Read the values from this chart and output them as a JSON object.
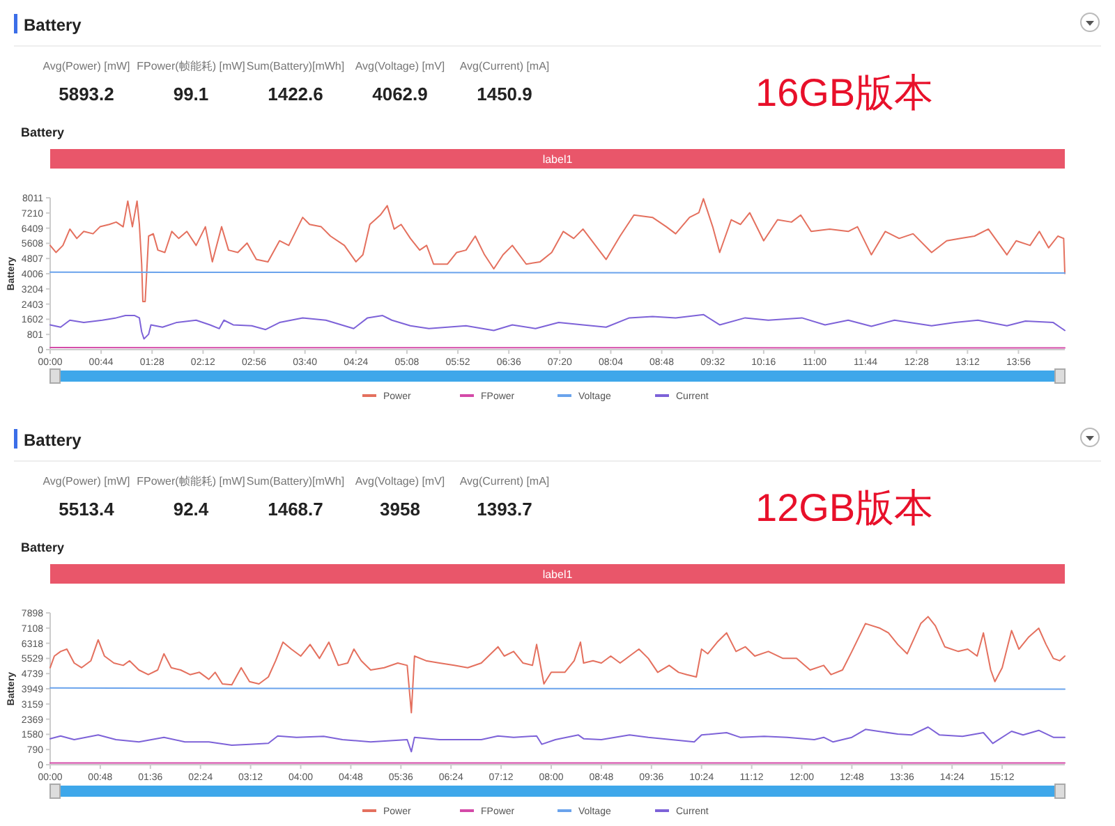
{
  "chart_data": [
    {
      "type": "line",
      "title": "Battery",
      "subtitle": "Battery",
      "ylabel": "Battery",
      "legend": "bottom",
      "annotations": [
        "Avg(Power) [mW]",
        "5893.2",
        "FPower(帧能耗) [mW]",
        "99.1",
        "Sum(Battery)[mWh]",
        "1422.6",
        "Avg(Voltage) [mV]",
        "4062.9",
        "Avg(Current) [mA]",
        "1450.9",
        "label1",
        "16GB版本"
      ],
      "xlim": [
        0,
        876
      ],
      "ylim": [
        0,
        8011
      ],
      "xticks": [
        {
          "value": 0,
          "label": "00:00"
        },
        {
          "value": 44,
          "label": "00:44"
        },
        {
          "value": 88,
          "label": "01:28"
        },
        {
          "value": 132,
          "label": "02:12"
        },
        {
          "value": 176,
          "label": "02:56"
        },
        {
          "value": 220,
          "label": "03:40"
        },
        {
          "value": 264,
          "label": "04:24"
        },
        {
          "value": 308,
          "label": "05:08"
        },
        {
          "value": 352,
          "label": "05:52"
        },
        {
          "value": 396,
          "label": "06:36"
        },
        {
          "value": 440,
          "label": "07:20"
        },
        {
          "value": 484,
          "label": "08:04"
        },
        {
          "value": 528,
          "label": "08:48"
        },
        {
          "value": 572,
          "label": "09:32"
        },
        {
          "value": 616,
          "label": "10:16"
        },
        {
          "value": 660,
          "label": "11:00"
        },
        {
          "value": 704,
          "label": "11:44"
        },
        {
          "value": 748,
          "label": "12:28"
        },
        {
          "value": 792,
          "label": "13:12"
        },
        {
          "value": 836,
          "label": "13:56"
        }
      ],
      "yticks": [
        0,
        801,
        1602,
        2403,
        3204,
        4006,
        4807,
        5608,
        6409,
        7210,
        8011
      ],
      "series": [
        {
          "name": "Power",
          "color": "#e4705e",
          "x": [
            0,
            5,
            11,
            17,
            23,
            29,
            37,
            43,
            51,
            57,
            63,
            67,
            71,
            75,
            77,
            79,
            80,
            82,
            85,
            89,
            93,
            99,
            105,
            111,
            118,
            126,
            134,
            140,
            148,
            154,
            162,
            170,
            178,
            188,
            198,
            206,
            218,
            224,
            234,
            242,
            254,
            264,
            270,
            276,
            285,
            291,
            297,
            303,
            311,
            319,
            325,
            331,
            343,
            351,
            359,
            367,
            375,
            383,
            391,
            399,
            411,
            423,
            433,
            443,
            452,
            460,
            480,
            492,
            504,
            520,
            532,
            540,
            552,
            560,
            564,
            572,
            578,
            588,
            596,
            604,
            616,
            628,
            640,
            648,
            657,
            673,
            689,
            697,
            709,
            721,
            733,
            745,
            761,
            774,
            786,
            798,
            810,
            826,
            834,
            846,
            854,
            862,
            870,
            875,
            876
          ],
          "values": [
            5497,
            5127,
            5497,
            6360,
            5867,
            6236,
            6113,
            6483,
            6606,
            6729,
            6483,
            7839,
            6483,
            7839,
            6606,
            4511,
            2539,
            2539,
            5990,
            6113,
            5250,
            5127,
            6236,
            5867,
            6236,
            5497,
            6483,
            4634,
            6483,
            5250,
            5127,
            5620,
            4757,
            4634,
            5743,
            5497,
            6976,
            6606,
            6483,
            5990,
            5497,
            4634,
            5004,
            6606,
            7099,
            7592,
            6360,
            6606,
            5867,
            5250,
            5497,
            4511,
            4511,
            5127,
            5250,
            5990,
            5004,
            4264,
            5004,
            5497,
            4511,
            4634,
            5127,
            6236,
            5867,
            6360,
            4757,
            5990,
            7099,
            6976,
            6483,
            6113,
            6976,
            7222,
            7962,
            6483,
            5127,
            6853,
            6606,
            7222,
            5743,
            6853,
            6729,
            7099,
            6236,
            6360,
            6236,
            6483,
            5004,
            6236,
            5867,
            6113,
            5127,
            5743,
            5867,
            5990,
            6360,
            5004,
            5743,
            5497,
            6236,
            5374,
            5990,
            5867,
            4018
          ]
        },
        {
          "name": "FPower",
          "color": "#d44aa8",
          "x": [
            0,
            219,
            438,
            657,
            876
          ],
          "values": [
            110,
            100,
            100,
            95,
            95
          ]
        },
        {
          "name": "Voltage",
          "color": "#6aa3ec",
          "x": [
            0,
            219,
            438,
            657,
            876
          ],
          "values": [
            4090,
            4075,
            4060,
            4050,
            4040
          ]
        },
        {
          "name": "Current",
          "color": "#7d62d8",
          "x": [
            0,
            9,
            17,
            29,
            45,
            57,
            65,
            73,
            77,
            79,
            81,
            85,
            87,
            97,
            109,
            126,
            138,
            146,
            150,
            158,
            174,
            186,
            198,
            218,
            238,
            262,
            274,
            287,
            295,
            311,
            327,
            343,
            359,
            383,
            399,
            419,
            439,
            460,
            480,
            500,
            520,
            540,
            564,
            578,
            600,
            620,
            649,
            669,
            689,
            709,
            729,
            761,
            781,
            801,
            826,
            842,
            866,
            876
          ],
          "values": [
            1306,
            1183,
            1553,
            1430,
            1553,
            1676,
            1799,
            1799,
            1676,
            937,
            567,
            813,
            1306,
            1183,
            1430,
            1553,
            1306,
            1109,
            1553,
            1306,
            1257,
            1060,
            1430,
            1676,
            1553,
            1109,
            1676,
            1799,
            1553,
            1257,
            1109,
            1183,
            1257,
            1011,
            1306,
            1109,
            1430,
            1306,
            1183,
            1676,
            1750,
            1676,
            1849,
            1306,
            1676,
            1553,
            1676,
            1306,
            1553,
            1232,
            1553,
            1257,
            1430,
            1553,
            1257,
            1504,
            1430,
            1011
          ]
        }
      ]
    },
    {
      "type": "line",
      "title": "Battery",
      "subtitle": "Battery",
      "ylabel": "Battery",
      "legend": "bottom",
      "annotations": [
        "Avg(Power) [mW]",
        "5513.4",
        "FPower(帧能耗) [mW]",
        "92.4",
        "Sum(Battery)[mWh]",
        "1468.7",
        "Avg(Voltage) [mV]",
        "3958",
        "Avg(Current) [mA]",
        "1393.7",
        "label1",
        "12GB版本"
      ],
      "xlim": [
        0,
        972
      ],
      "ylim": [
        0,
        7898
      ],
      "xticks": [
        {
          "value": 0,
          "label": "00:00"
        },
        {
          "value": 48,
          "label": "00:48"
        },
        {
          "value": 96,
          "label": "01:36"
        },
        {
          "value": 144,
          "label": "02:24"
        },
        {
          "value": 192,
          "label": "03:12"
        },
        {
          "value": 240,
          "label": "04:00"
        },
        {
          "value": 288,
          "label": "04:48"
        },
        {
          "value": 336,
          "label": "05:36"
        },
        {
          "value": 384,
          "label": "06:24"
        },
        {
          "value": 432,
          "label": "07:12"
        },
        {
          "value": 480,
          "label": "08:00"
        },
        {
          "value": 528,
          "label": "08:48"
        },
        {
          "value": 576,
          "label": "09:36"
        },
        {
          "value": 624,
          "label": "10:24"
        },
        {
          "value": 672,
          "label": "11:12"
        },
        {
          "value": 720,
          "label": "12:00"
        },
        {
          "value": 768,
          "label": "12:48"
        },
        {
          "value": 816,
          "label": "13:36"
        },
        {
          "value": 864,
          "label": "14:24"
        },
        {
          "value": 912,
          "label": "15:12"
        }
      ],
      "yticks": [
        0,
        790,
        1580,
        2369,
        3159,
        3949,
        4739,
        5529,
        6318,
        7108,
        7898
      ],
      "series": [
        {
          "name": "Power",
          "color": "#e4705e",
          "x": [
            0,
            4,
            10,
            16,
            23,
            30,
            39,
            46,
            52,
            61,
            70,
            76,
            85,
            94,
            103,
            109,
            116,
            125,
            134,
            143,
            152,
            158,
            165,
            174,
            183,
            191,
            200,
            209,
            216,
            223,
            231,
            240,
            249,
            258,
            267,
            276,
            285,
            291,
            298,
            307,
            320,
            333,
            342,
            346,
            349,
            360,
            373,
            387,
            400,
            413,
            429,
            435,
            444,
            453,
            462,
            466,
            473,
            480,
            493,
            502,
            508,
            511,
            520,
            528,
            537,
            546,
            555,
            564,
            573,
            582,
            593,
            602,
            610,
            619,
            624,
            630,
            639,
            648,
            657,
            666,
            675,
            688,
            702,
            715,
            728,
            741,
            748,
            759,
            768,
            781,
            795,
            803,
            812,
            821,
            828,
            834,
            841,
            848,
            857,
            870,
            879,
            888,
            894,
            901,
            905,
            912,
            921,
            928,
            937,
            947,
            954,
            961,
            967,
            972
          ],
          "values": [
            5047,
            5651,
            5893,
            6013,
            5289,
            5047,
            5410,
            6496,
            5651,
            5289,
            5168,
            5410,
            4927,
            4685,
            4927,
            5772,
            5047,
            4927,
            4685,
            4806,
            4444,
            4806,
            4202,
            4154,
            5047,
            4323,
            4202,
            4564,
            5410,
            6376,
            6013,
            5651,
            6255,
            5530,
            6376,
            5168,
            5289,
            6013,
            5410,
            4927,
            5047,
            5289,
            5168,
            2705,
            5651,
            5410,
            5289,
            5168,
            5047,
            5289,
            6134,
            5651,
            5893,
            5289,
            5168,
            6255,
            4202,
            4806,
            4806,
            5410,
            6376,
            5289,
            5410,
            5289,
            5651,
            5289,
            5651,
            6013,
            5530,
            4806,
            5168,
            4806,
            4685,
            4564,
            6013,
            5772,
            6376,
            6859,
            5893,
            6134,
            5651,
            5893,
            5530,
            5530,
            4927,
            5168,
            4685,
            4927,
            5893,
            7342,
            7100,
            6859,
            6255,
            5772,
            6617,
            7342,
            7704,
            7221,
            6134,
            5893,
            6013,
            5651,
            6859,
            4927,
            4323,
            5047,
            6979,
            6013,
            6617,
            7100,
            6255,
            5530,
            5410,
            5651
          ]
        },
        {
          "name": "FPower",
          "color": "#d44aa8",
          "x": [
            0,
            243,
            486,
            729,
            972
          ],
          "values": [
            95,
            92,
            90,
            92,
            90
          ]
        },
        {
          "name": "Voltage",
          "color": "#6aa3ec",
          "x": [
            0,
            243,
            486,
            729,
            972
          ],
          "values": [
            3990,
            3970,
            3955,
            3945,
            3935
          ]
        },
        {
          "name": "Current",
          "color": "#7d62d8",
          "x": [
            0,
            10,
            23,
            46,
            63,
            85,
            109,
            129,
            152,
            174,
            191,
            209,
            218,
            236,
            262,
            280,
            307,
            342,
            346,
            349,
            373,
            413,
            429,
            444,
            466,
            471,
            484,
            506,
            511,
            528,
            555,
            573,
            595,
            617,
            624,
            648,
            661,
            684,
            706,
            732,
            741,
            750,
            768,
            781,
            812,
            825,
            841,
            852,
            874,
            894,
            903,
            921,
            932,
            947,
            961,
            972
          ],
          "values": [
            1352,
            1497,
            1304,
            1546,
            1304,
            1183,
            1425,
            1183,
            1183,
            1014,
            1063,
            1111,
            1497,
            1425,
            1473,
            1304,
            1183,
            1304,
            676,
            1425,
            1304,
            1304,
            1497,
            1425,
            1497,
            1063,
            1304,
            1546,
            1352,
            1304,
            1546,
            1425,
            1304,
            1183,
            1546,
            1666,
            1425,
            1473,
            1425,
            1304,
            1425,
            1183,
            1425,
            1835,
            1594,
            1546,
            1956,
            1546,
            1473,
            1666,
            1111,
            1739,
            1546,
            1787,
            1425,
            1425
          ]
        }
      ]
    }
  ]
}
